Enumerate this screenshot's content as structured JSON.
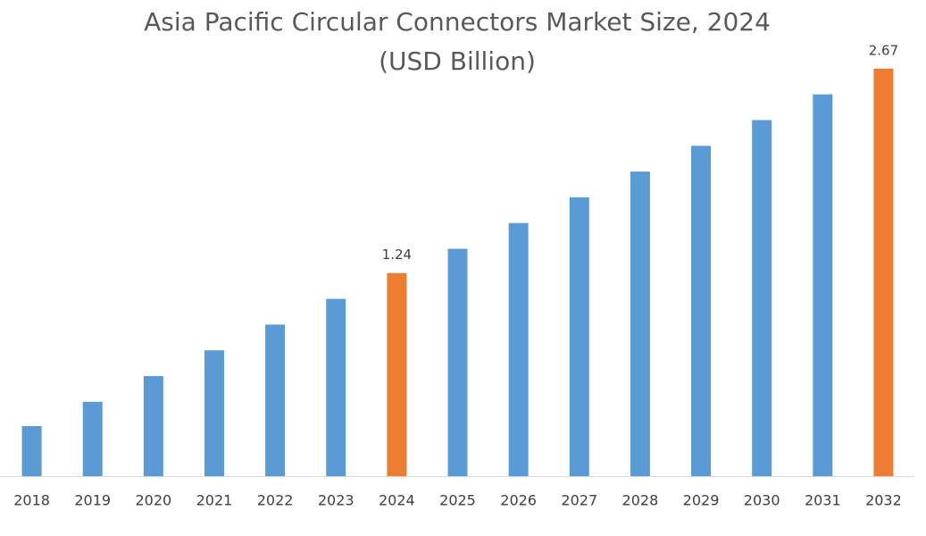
{
  "chart_data": {
    "type": "bar",
    "title": "Asia Pacific Circular Connectors Market Size, 2024",
    "subtitle": "(USD Billion)",
    "categories": [
      "2018",
      "2019",
      "2020",
      "2021",
      "2022",
      "2023",
      "2024",
      "2025",
      "2026",
      "2027",
      "2028",
      "2029",
      "2030",
      "2031",
      "2032"
    ],
    "values": [
      0.17,
      0.34,
      0.52,
      0.7,
      0.88,
      1.06,
      1.24,
      1.41,
      1.59,
      1.77,
      1.95,
      2.13,
      2.31,
      2.49,
      2.67
    ],
    "value_labels": [
      null,
      null,
      null,
      null,
      null,
      null,
      "1.24",
      null,
      null,
      null,
      null,
      null,
      null,
      null,
      "2.67"
    ],
    "colors": [
      "#5b9bd5",
      "#5b9bd5",
      "#5b9bd5",
      "#5b9bd5",
      "#5b9bd5",
      "#5b9bd5",
      "#ed7d31",
      "#5b9bd5",
      "#5b9bd5",
      "#5b9bd5",
      "#5b9bd5",
      "#5b9bd5",
      "#5b9bd5",
      "#5b9bd5",
      "#ed7d31"
    ],
    "ylim": [
      -0.18,
      2.9
    ],
    "grid": false
  }
}
